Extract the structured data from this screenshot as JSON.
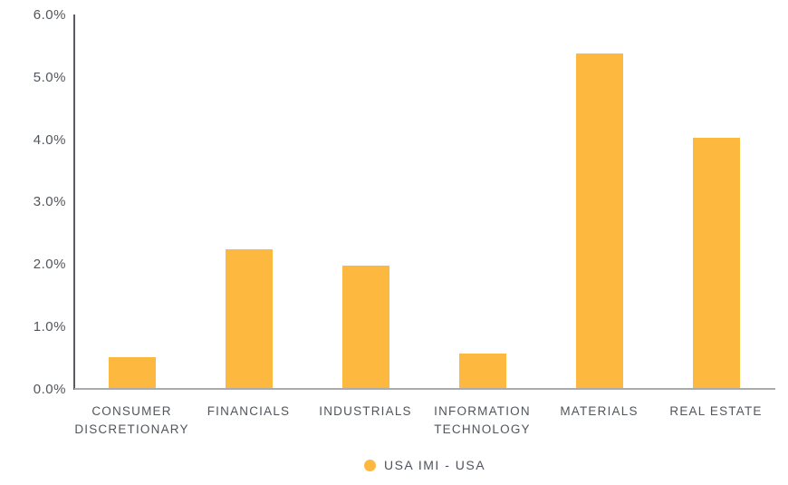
{
  "chart_data": {
    "type": "bar",
    "title": "",
    "xlabel": "",
    "ylabel": "",
    "categories": [
      "CONSUMER DISCRETIONARY",
      "FINANCIALS",
      "INDUSTRIALS",
      "INFORMATION TECHNOLOGY",
      "MATERIALS",
      "REAL ESTATE"
    ],
    "values": [
      0.52,
      2.25,
      2.0,
      0.58,
      5.4,
      4.05
    ],
    "unit": "%",
    "series_name": "USA IMI - USA",
    "y_tick_labels": [
      "0.0%",
      "1.0%",
      "2.0%",
      "3.0%",
      "4.0%",
      "5.0%",
      "6.0%"
    ],
    "y_tick_values": [
      0,
      1,
      2,
      3,
      4,
      5,
      6
    ],
    "ylim": [
      0,
      6
    ],
    "grid": false,
    "legend_position": "bottom"
  },
  "colors": {
    "bar": "#FDB840",
    "text": "#51565C",
    "axis_vertical": "#585C61",
    "axis_horizontal": "#A9ABAE",
    "background": "#FFFFFF"
  }
}
